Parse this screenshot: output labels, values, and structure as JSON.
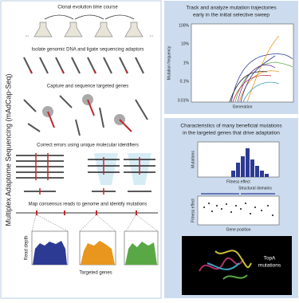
{
  "sidebar_title": "Multiplex Adaptome Sequencing (mAdCap-Seq)",
  "steps": [
    {
      "title": "Clonal evolution time course",
      "ellipsis": "..."
    },
    {
      "title": "Isolate genomic DNA and ligate sequencing adaptors"
    },
    {
      "title": "Capture and sequence targeted genes"
    },
    {
      "title": "Correct errors using unique molecular identifiers"
    },
    {
      "title": "Map consensus reads to genome and identify mutations",
      "y_label": "Read depth",
      "x_label": "Targeted genes"
    }
  ],
  "trajectories": {
    "title_lines": [
      "Track and analyze mutation trajectories",
      "early in the initial selective sweep"
    ],
    "y_label": "Mutation frequency",
    "x_label": "Generation",
    "y_tick_labels": [
      "100%",
      "10%",
      "1%",
      "0.1%",
      "0.01%"
    ]
  },
  "characteristics": {
    "title_lines": [
      "Characteristics of many beneficial mutations",
      "in the targeted genes that drive adaptation"
    ],
    "histogram": {
      "y_label": "Mutations",
      "x_label": "Fitness effect"
    },
    "scatter": {
      "y_label": "Fitness effect",
      "x_label": "Gene position",
      "domains_label": "Structural domains"
    },
    "structure_label": [
      "TopA",
      "mutations"
    ]
  }
}
